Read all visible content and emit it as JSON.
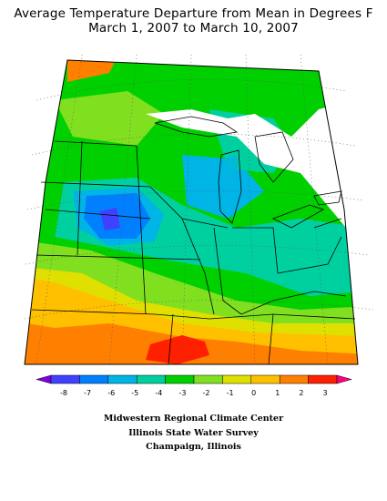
{
  "title": {
    "line1": "Average Temperature Departure from Mean in Degrees F",
    "line2": "March 1, 2007 to March 10, 2007"
  },
  "legend": {
    "ticks": [
      "-8",
      "-7",
      "-6",
      "-5",
      "-4",
      "-3",
      "-2",
      "-1",
      "0",
      "1",
      "2",
      "3"
    ],
    "colors": [
      "#7f00e6",
      "#4040ff",
      "#0080ff",
      "#00b4e6",
      "#00d0a0",
      "#00d000",
      "#80e020",
      "#e0e000",
      "#ffc000",
      "#ff8000",
      "#ff2000",
      "#ff0080"
    ]
  },
  "credits": {
    "line1": "Midwestern Regional Climate Center",
    "line2": "Illinois State Water Survey",
    "line3": "Champaign, Illinois"
  }
}
